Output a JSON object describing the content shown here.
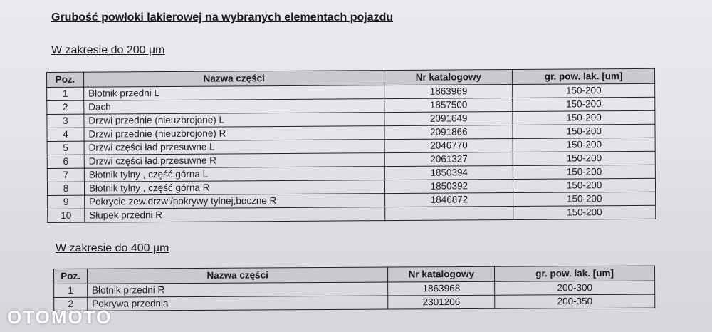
{
  "title": "Grubość powłoki lakierowej na wybranych elementach pojazdu",
  "sections": [
    {
      "heading": "W zakresie do 200 µm",
      "columns": [
        "Poz.",
        "Nazwa części",
        "Nr katalogowy",
        "gr. pow. lak. [um]"
      ],
      "rows": [
        [
          "1",
          "Błotnik przedni L",
          "1863969",
          "150-200"
        ],
        [
          "2",
          "Dach",
          "1857500",
          "150-200"
        ],
        [
          "3",
          "Drzwi przednie (nieuzbrojone) L",
          "2091649",
          "150-200"
        ],
        [
          "4",
          "Drzwi przednie (nieuzbrojone) R",
          "2091866",
          "150-200"
        ],
        [
          "5",
          "Drzwi części ład.przesuwne L",
          "2046770",
          "150-200"
        ],
        [
          "6",
          "Drzwi części ład.przesuwne R",
          "2061327",
          "150-200"
        ],
        [
          "7",
          "Błotnik tylny , część górna L",
          "1850394",
          "150-200"
        ],
        [
          "8",
          "Błotnik tylny , część górna R",
          "1850392",
          "150-200"
        ],
        [
          "9",
          "Pokrycie zew.drzwi/pokrywy tylnej,boczne R",
          "1846872",
          "150-200"
        ],
        [
          "10",
          "Słupek przedni R",
          "",
          "150-200"
        ]
      ]
    },
    {
      "heading": "W zakresie do 400 µm",
      "columns": [
        "Poz.",
        "Nazwa części",
        "Nr katalogowy",
        "gr. pow. lak. [um]"
      ],
      "rows": [
        [
          "1",
          "Błotnik przedni R",
          "1863968",
          "200-300"
        ],
        [
          "2",
          "Pokrywa przednia",
          "2301206",
          "200-350"
        ]
      ]
    }
  ],
  "watermark": "OTOMOTO"
}
